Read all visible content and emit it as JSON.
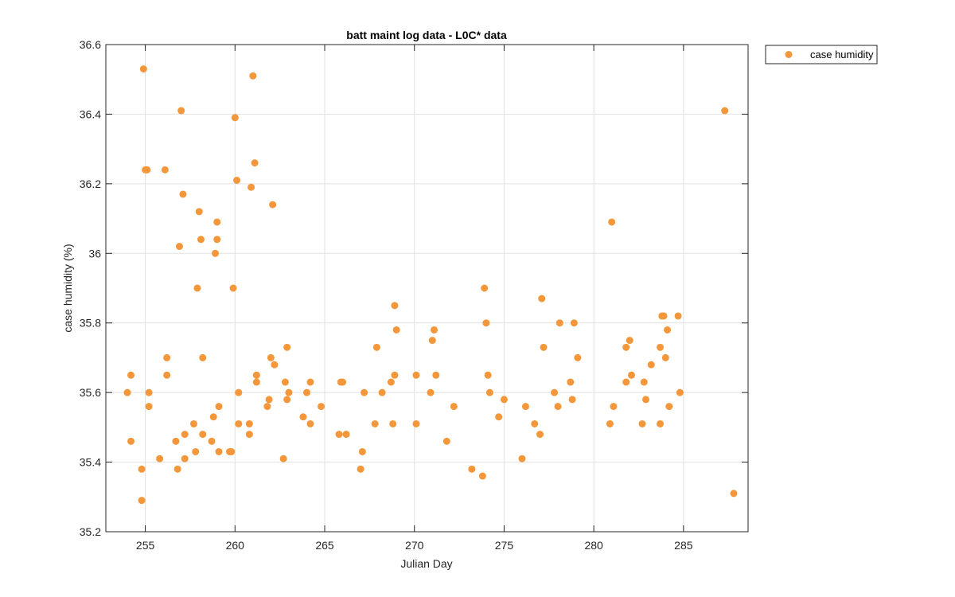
{
  "chart_data": {
    "type": "scatter",
    "title": "batt maint log data - L0C* data",
    "xlabel": "Julian Day",
    "ylabel": "case humidity (%)",
    "xlim": [
      252.8,
      288.6
    ],
    "ylim": [
      35.2,
      36.6
    ],
    "xticks": [
      255,
      260,
      265,
      270,
      275,
      280,
      285
    ],
    "yticks": [
      35.2,
      35.4,
      35.6,
      35.8,
      36.0,
      36.2,
      36.4,
      36.6
    ],
    "ytick_labels": [
      "35.2",
      "35.4",
      "35.6",
      "35.8",
      "36",
      "36.2",
      "36.4",
      "36.6"
    ],
    "grid": true,
    "legend_position": "outside top-right",
    "colors": {
      "marker": "#f4973a",
      "axes": "#262626",
      "grid": "#e1e1e1"
    },
    "series": [
      {
        "name": "case humidity",
        "points": [
          [
            254.0,
            35.6
          ],
          [
            254.2,
            35.65
          ],
          [
            254.2,
            35.46
          ],
          [
            254.8,
            35.29
          ],
          [
            254.8,
            35.38
          ],
          [
            254.9,
            36.53
          ],
          [
            255.0,
            36.24
          ],
          [
            255.1,
            36.24
          ],
          [
            255.2,
            35.6
          ],
          [
            255.2,
            35.56
          ],
          [
            255.8,
            35.41
          ],
          [
            256.1,
            36.24
          ],
          [
            256.2,
            35.7
          ],
          [
            256.2,
            35.65
          ],
          [
            256.7,
            35.46
          ],
          [
            256.8,
            35.38
          ],
          [
            256.9,
            36.02
          ],
          [
            257.0,
            36.41
          ],
          [
            257.1,
            36.17
          ],
          [
            257.2,
            35.48
          ],
          [
            257.2,
            35.41
          ],
          [
            257.7,
            35.51
          ],
          [
            257.8,
            35.43
          ],
          [
            257.9,
            35.9
          ],
          [
            258.0,
            36.12
          ],
          [
            258.1,
            36.04
          ],
          [
            258.2,
            35.7
          ],
          [
            258.2,
            35.48
          ],
          [
            258.7,
            35.46
          ],
          [
            258.8,
            35.53
          ],
          [
            258.9,
            36.0
          ],
          [
            259.0,
            36.04
          ],
          [
            259.0,
            36.09
          ],
          [
            259.1,
            35.56
          ],
          [
            259.1,
            35.43
          ],
          [
            259.7,
            35.43
          ],
          [
            259.8,
            35.43
          ],
          [
            259.9,
            35.9
          ],
          [
            260.0,
            36.39
          ],
          [
            260.1,
            36.21
          ],
          [
            260.2,
            35.6
          ],
          [
            260.2,
            35.51
          ],
          [
            260.8,
            35.51
          ],
          [
            260.8,
            35.48
          ],
          [
            260.9,
            36.19
          ],
          [
            261.0,
            36.51
          ],
          [
            261.1,
            36.26
          ],
          [
            261.2,
            35.65
          ],
          [
            261.2,
            35.63
          ],
          [
            261.8,
            35.56
          ],
          [
            261.9,
            35.58
          ],
          [
            262.0,
            35.7
          ],
          [
            262.1,
            36.14
          ],
          [
            262.2,
            35.68
          ],
          [
            262.7,
            35.41
          ],
          [
            262.8,
            35.63
          ],
          [
            262.9,
            35.73
          ],
          [
            262.9,
            35.58
          ],
          [
            263.0,
            35.6
          ],
          [
            263.8,
            35.53
          ],
          [
            264.0,
            35.6
          ],
          [
            264.2,
            35.63
          ],
          [
            264.2,
            35.51
          ],
          [
            264.8,
            35.56
          ],
          [
            265.8,
            35.48
          ],
          [
            265.9,
            35.63
          ],
          [
            266.0,
            35.63
          ],
          [
            266.2,
            35.48
          ],
          [
            267.0,
            35.38
          ],
          [
            267.1,
            35.43
          ],
          [
            267.2,
            35.6
          ],
          [
            267.8,
            35.51
          ],
          [
            267.9,
            35.73
          ],
          [
            268.2,
            35.6
          ],
          [
            268.7,
            35.63
          ],
          [
            268.8,
            35.51
          ],
          [
            268.9,
            35.65
          ],
          [
            268.9,
            35.85
          ],
          [
            269.0,
            35.78
          ],
          [
            270.1,
            35.51
          ],
          [
            270.1,
            35.65
          ],
          [
            270.9,
            35.6
          ],
          [
            271.0,
            35.75
          ],
          [
            271.1,
            35.78
          ],
          [
            271.2,
            35.65
          ],
          [
            271.8,
            35.46
          ],
          [
            272.2,
            35.56
          ],
          [
            273.2,
            35.38
          ],
          [
            273.8,
            35.36
          ],
          [
            273.9,
            35.9
          ],
          [
            274.0,
            35.8
          ],
          [
            274.1,
            35.65
          ],
          [
            274.2,
            35.6
          ],
          [
            274.7,
            35.53
          ],
          [
            275.0,
            35.58
          ],
          [
            276.0,
            35.41
          ],
          [
            276.2,
            35.56
          ],
          [
            276.7,
            35.51
          ],
          [
            277.0,
            35.48
          ],
          [
            277.1,
            35.87
          ],
          [
            277.2,
            35.73
          ],
          [
            277.8,
            35.6
          ],
          [
            278.0,
            35.56
          ],
          [
            278.1,
            35.8
          ],
          [
            278.7,
            35.63
          ],
          [
            278.8,
            35.58
          ],
          [
            278.9,
            35.8
          ],
          [
            279.1,
            35.7
          ],
          [
            280.9,
            35.51
          ],
          [
            281.0,
            36.09
          ],
          [
            281.1,
            35.56
          ],
          [
            281.8,
            35.63
          ],
          [
            281.8,
            35.73
          ],
          [
            282.0,
            35.75
          ],
          [
            282.1,
            35.65
          ],
          [
            282.7,
            35.51
          ],
          [
            282.8,
            35.63
          ],
          [
            282.9,
            35.58
          ],
          [
            283.2,
            35.68
          ],
          [
            283.7,
            35.51
          ],
          [
            283.7,
            35.73
          ],
          [
            283.8,
            35.82
          ],
          [
            283.9,
            35.82
          ],
          [
            284.0,
            35.7
          ],
          [
            284.1,
            35.78
          ],
          [
            284.2,
            35.56
          ],
          [
            284.7,
            35.82
          ],
          [
            284.8,
            35.6
          ],
          [
            287.3,
            36.41
          ],
          [
            287.8,
            35.31
          ]
        ]
      }
    ]
  }
}
